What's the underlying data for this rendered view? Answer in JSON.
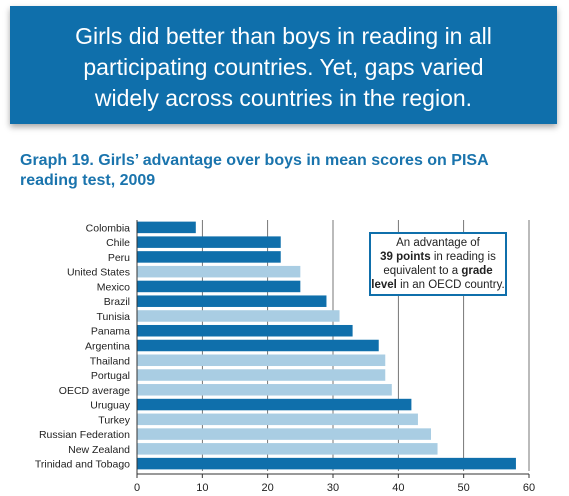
{
  "banner": {
    "text": "Girls did better than boys in reading in all participating countries. Yet, gaps varied widely across countries in the region."
  },
  "chart_title": "Graph 19. Girls’ advantage over boys in mean scores on PISA reading test, 2009",
  "note": {
    "line1": "An advantage of",
    "bold1": "39 points",
    "line2": " in reading is equivalent to a ",
    "bold2": "grade level",
    "line3": " in an OECD country."
  },
  "colors": {
    "dark": "#0f6fab",
    "light": "#a9cde3",
    "banner": "#0f6fab"
  },
  "chart_data": {
    "type": "bar",
    "orientation": "horizontal",
    "categories": [
      "Colombia",
      "Chile",
      "Peru",
      "United States",
      "Mexico",
      "Brazil",
      "Tunisia",
      "Panama",
      "Argentina",
      "Thailand",
      "Portugal",
      "OECD average",
      "Uruguay",
      "Turkey",
      "Russian Federation",
      "New Zealand",
      "Trinidad and Tobago"
    ],
    "values": [
      9,
      22,
      22,
      25,
      25,
      29,
      31,
      33,
      37,
      38,
      38,
      39,
      42,
      43,
      45,
      46,
      58
    ],
    "shade": [
      "dark",
      "dark",
      "dark",
      "light",
      "dark",
      "dark",
      "light",
      "dark",
      "dark",
      "light",
      "light",
      "light",
      "dark",
      "light",
      "light",
      "light",
      "dark"
    ],
    "xlim": [
      0,
      60
    ],
    "xticks": [
      0,
      10,
      20,
      30,
      40,
      50,
      60
    ],
    "grid": true
  }
}
